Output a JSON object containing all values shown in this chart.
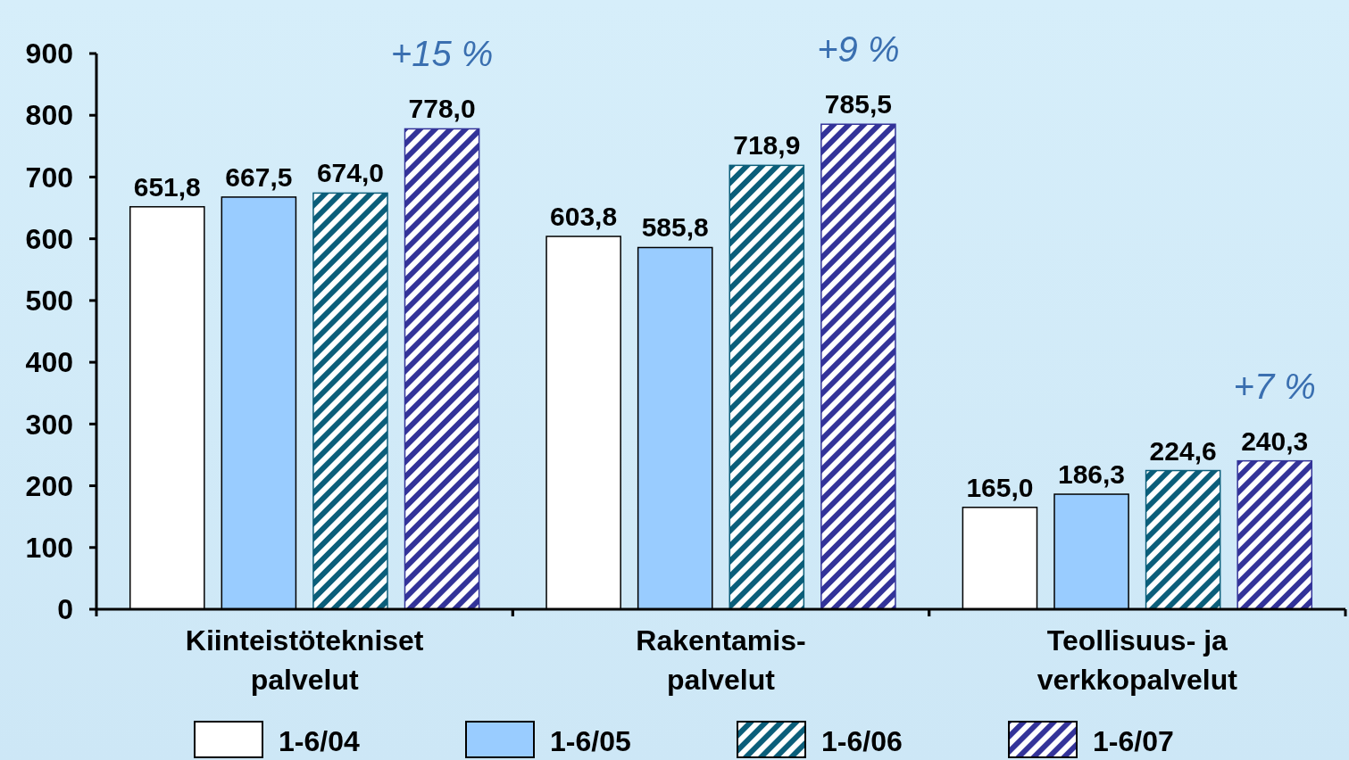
{
  "chart_data": {
    "type": "bar",
    "categories": [
      "Kiinteistötekniset palvelut",
      "Rakentamis- palvelut",
      "Teollisuus- ja verkkopalvelut"
    ],
    "series": [
      {
        "name": "1-6/04",
        "color": "#ffffff",
        "values": [
          651.8,
          603.8,
          165.0
        ],
        "value_labels": [
          "651,8",
          "603,8",
          "165,0"
        ]
      },
      {
        "name": "1-6/05",
        "color": "#99ccff",
        "values": [
          667.5,
          585.8,
          186.3
        ],
        "value_labels": [
          "667,5",
          "585,8",
          "186,3"
        ]
      },
      {
        "name": "1-6/06",
        "color": "#0b5e7a",
        "values": [
          674.0,
          718.9,
          224.6
        ],
        "value_labels": [
          "674,0",
          "718,9",
          "224,6"
        ]
      },
      {
        "name": "1-6/07",
        "color": "#333399",
        "values": [
          778.0,
          785.5,
          240.3
        ],
        "value_labels": [
          "778,0",
          "785,5",
          "240,3"
        ]
      }
    ],
    "ylim": [
      0,
      900
    ],
    "yticks": [
      0,
      100,
      200,
      300,
      400,
      500,
      600,
      700,
      800,
      900
    ],
    "annotations": [
      "+15 %",
      "+9 %",
      "+7 %"
    ],
    "legend": "bottom"
  }
}
